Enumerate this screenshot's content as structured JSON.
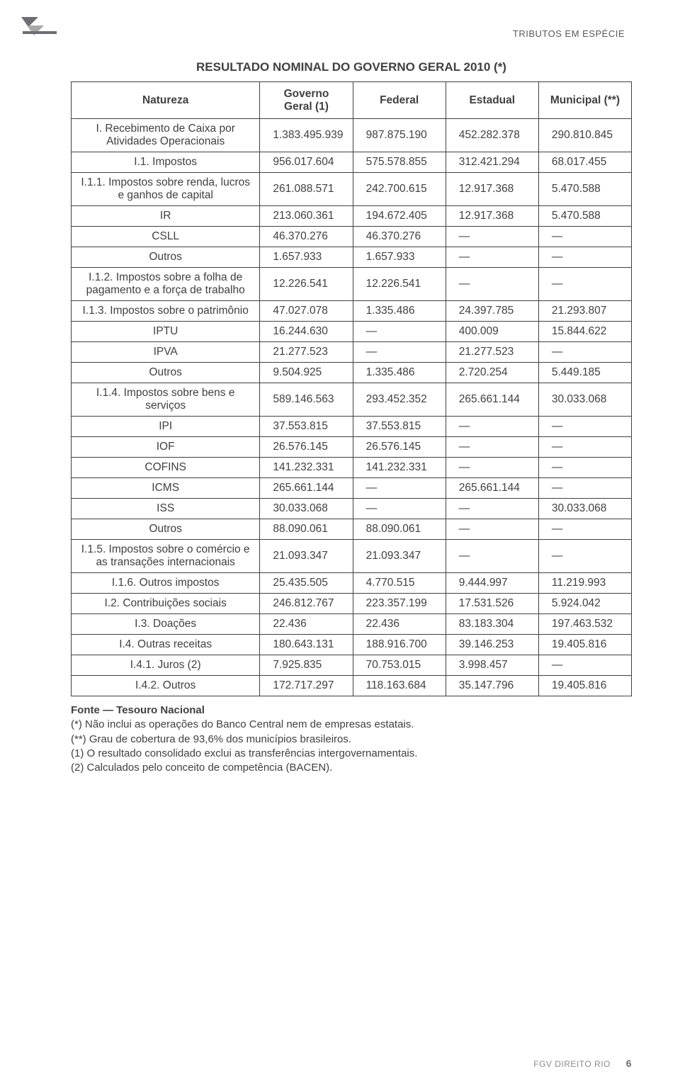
{
  "header_tag": "TRIBUTOS EM ESPÉCIE",
  "title": "RESULTADO NOMINAL DO GOVERNO GERAL 2010 (*)",
  "columns": [
    "Natureza",
    "Governo\nGeral (1)",
    "Federal",
    "Estadual",
    "Municipal (**)"
  ],
  "rows": [
    {
      "label": "I. Recebimento de Caixa por Atividades Operacionais",
      "c": [
        "1.383.495.939",
        "987.875.190",
        "452.282.378",
        "290.810.845"
      ]
    },
    {
      "label": "I.1. Impostos",
      "c": [
        "956.017.604",
        "575.578.855",
        "312.421.294",
        "68.017.455"
      ]
    },
    {
      "label": "I.1.1. Impostos sobre renda, lucros e ganhos de capital",
      "c": [
        "261.088.571",
        "242.700.615",
        "12.917.368",
        "5.470.588"
      ]
    },
    {
      "label": "IR",
      "c": [
        "213.060.361",
        "194.672.405",
        "12.917.368",
        "5.470.588"
      ]
    },
    {
      "label": "CSLL",
      "c": [
        "46.370.276",
        "46.370.276",
        "—",
        "—"
      ]
    },
    {
      "label": "Outros",
      "c": [
        "1.657.933",
        "1.657.933",
        "—",
        "—"
      ]
    },
    {
      "label": "I.1.2. Impostos sobre a folha de pagamento e a força de trabalho",
      "c": [
        "12.226.541",
        "12.226.541",
        "—",
        "—"
      ]
    },
    {
      "label": "I.1.3. Impostos sobre o patrimônio",
      "c": [
        "47.027.078",
        "1.335.486",
        "24.397.785",
        "21.293.807"
      ]
    },
    {
      "label": "IPTU",
      "c": [
        "16.244.630",
        "—",
        "400.009",
        "15.844.622"
      ]
    },
    {
      "label": "IPVA",
      "c": [
        "21.277.523",
        "—",
        "21.277.523",
        "—"
      ]
    },
    {
      "label": "Outros",
      "c": [
        "9.504.925",
        "1.335.486",
        "2.720.254",
        "5.449.185"
      ]
    },
    {
      "label": "I.1.4. Impostos sobre bens e serviços",
      "c": [
        "589.146.563",
        "293.452.352",
        "265.661.144",
        "30.033.068"
      ]
    },
    {
      "label": "IPI",
      "c": [
        "37.553.815",
        "37.553.815",
        "—",
        "—"
      ]
    },
    {
      "label": "IOF",
      "c": [
        "26.576.145",
        "26.576.145",
        "—",
        "—"
      ]
    },
    {
      "label": "COFINS",
      "c": [
        "141.232.331",
        "141.232.331",
        "—",
        "—"
      ]
    },
    {
      "label": "ICMS",
      "c": [
        "265.661.144",
        "—",
        "265.661.144",
        "—"
      ]
    },
    {
      "label": "ISS",
      "c": [
        "30.033.068",
        "—",
        "—",
        "30.033.068"
      ]
    },
    {
      "label": "Outros",
      "c": [
        "88.090.061",
        "88.090.061",
        "—",
        "—"
      ]
    },
    {
      "label": "I.1.5. Impostos sobre o comércio e as transações internacionais",
      "c": [
        "21.093.347",
        "21.093.347",
        "—",
        "—"
      ]
    },
    {
      "label": "I.1.6. Outros impostos",
      "c": [
        "25.435.505",
        "4.770.515",
        "9.444.997",
        "11.219.993"
      ]
    },
    {
      "label": "I.2. Contribuições sociais",
      "c": [
        "246.812.767",
        "223.357.199",
        "17.531.526",
        "5.924.042"
      ]
    },
    {
      "label": "I.3. Doações",
      "c": [
        "22.436",
        "22.436",
        "83.183.304",
        "197.463.532"
      ]
    },
    {
      "label": "I.4. Outras receitas",
      "c": [
        "180.643.131",
        "188.916.700",
        "39.146.253",
        "19.405.816"
      ]
    },
    {
      "label": "I.4.1. Juros (2)",
      "c": [
        "7.925.835",
        "70.753.015",
        "3.998.457",
        "—"
      ]
    },
    {
      "label": "I.4.2. Outros",
      "c": [
        "172.717.297",
        "118.163.684",
        "35.147.796",
        "19.405.816"
      ]
    }
  ],
  "footnotes": {
    "source_label": "Fonte — Tesouro Nacional",
    "lines": [
      "(*) Não inclui as operações do Banco Central nem de empresas estatais.",
      "(**) Grau de cobertura de 93,6% dos municípios brasileiros.",
      "(1) O resultado consolidado exclui as transferências intergovernamentais.",
      "(2) Calculados pelo conceito de competência (BACEN)."
    ]
  },
  "footer": {
    "org": "FGV DIREITO RIO",
    "page": "6"
  },
  "colors": {
    "text": "#404041",
    "muted": "#58595b",
    "border": "#404041",
    "footer": "#8a8b8d",
    "bg": "#ffffff"
  }
}
